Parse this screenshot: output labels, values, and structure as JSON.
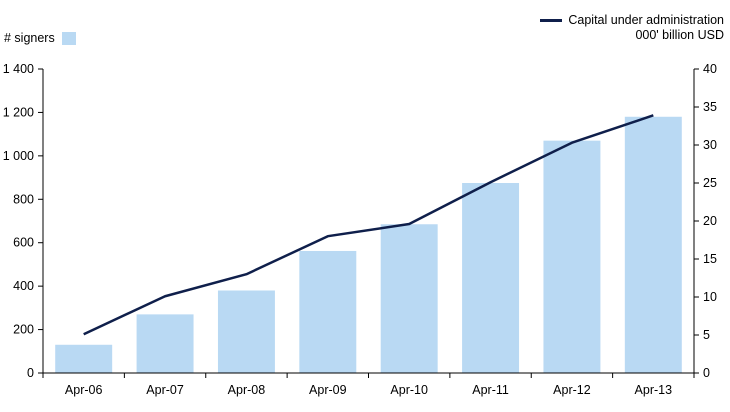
{
  "colors": {
    "bar": "#b9d9f3",
    "line": "#0f1f4b",
    "axis": "#000000"
  },
  "legend": {
    "bars_label": "# signers",
    "line_label": "Capital under administration",
    "line_unit": "000' billion USD"
  },
  "chart_data": {
    "type": "bar",
    "categories": [
      "Apr-06",
      "Apr-07",
      "Apr-08",
      "Apr-09",
      "Apr-10",
      "Apr-11",
      "Apr-12",
      "Apr-13"
    ],
    "series": [
      {
        "name": "# signers",
        "type": "bar",
        "axis": "left",
        "values": [
          130,
          270,
          380,
          562,
          685,
          875,
          1070,
          1180
        ]
      },
      {
        "name": "Capital under administration",
        "type": "line",
        "axis": "right",
        "values": [
          5.1,
          10.1,
          13.0,
          18.0,
          19.6,
          25.1,
          30.3,
          33.9
        ]
      }
    ],
    "left_axis": {
      "ylim": [
        0,
        1400
      ],
      "ticks": [
        0,
        200,
        400,
        600,
        800,
        1000,
        1200,
        1400
      ],
      "tick_labels": [
        "0",
        "200",
        "400",
        "600",
        "800",
        "1 000",
        "1 200",
        "1 400"
      ]
    },
    "right_axis": {
      "ylim": [
        0,
        40
      ],
      "ticks": [
        0,
        5,
        10,
        15,
        20,
        25,
        30,
        35,
        40
      ],
      "tick_labels": [
        "0",
        "5",
        "10",
        "15",
        "20",
        "25",
        "30",
        "35",
        "40"
      ]
    },
    "grid": false,
    "legend_placement": "top"
  }
}
